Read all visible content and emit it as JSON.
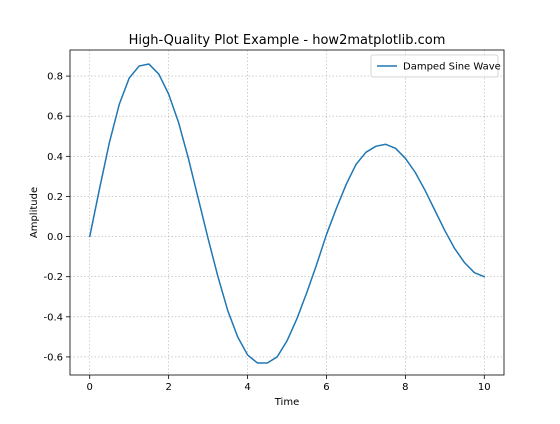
{
  "chart_data": {
    "type": "line",
    "title": "High-Quality Plot Example - how2matplotlib.com",
    "xlabel": "Time",
    "ylabel": "Amplitude",
    "xlim": [
      -0.5,
      10.5
    ],
    "ylim": [
      -0.69,
      0.93
    ],
    "xticks": [
      0,
      2,
      4,
      6,
      8,
      10
    ],
    "xtick_labels": [
      "0",
      "2",
      "4",
      "6",
      "8",
      "10"
    ],
    "yticks": [
      -0.6,
      -0.4,
      -0.2,
      0.0,
      0.2,
      0.4,
      0.6,
      0.8
    ],
    "ytick_labels": [
      "-0.6",
      "-0.4",
      "-0.2",
      "0.0",
      "0.2",
      "0.4",
      "0.6",
      "0.8"
    ],
    "grid": true,
    "legend_position": "top-right",
    "series": [
      {
        "name": "Damped Sine Wave",
        "color": "#1f77b4",
        "x": [
          0,
          0.25,
          0.5,
          0.75,
          1,
          1.25,
          1.5,
          1.75,
          2,
          2.25,
          2.5,
          2.75,
          3,
          3.25,
          3.5,
          3.75,
          4,
          4.25,
          4.5,
          4.75,
          5,
          5.25,
          5.5,
          5.75,
          6,
          6.25,
          6.5,
          6.75,
          7,
          7.25,
          7.5,
          7.75,
          8,
          8.25,
          8.5,
          8.75,
          9,
          9.25,
          9.5,
          9.75,
          10
        ],
        "y": [
          0.0,
          0.24,
          0.47,
          0.66,
          0.79,
          0.85,
          0.86,
          0.81,
          0.71,
          0.57,
          0.39,
          0.19,
          -0.01,
          -0.2,
          -0.37,
          -0.5,
          -0.59,
          -0.63,
          -0.63,
          -0.6,
          -0.52,
          -0.41,
          -0.28,
          -0.14,
          0.01,
          0.14,
          0.26,
          0.36,
          0.42,
          0.45,
          0.46,
          0.44,
          0.39,
          0.32,
          0.23,
          0.13,
          0.03,
          -0.06,
          -0.13,
          -0.18,
          -0.2
        ]
      }
    ]
  }
}
